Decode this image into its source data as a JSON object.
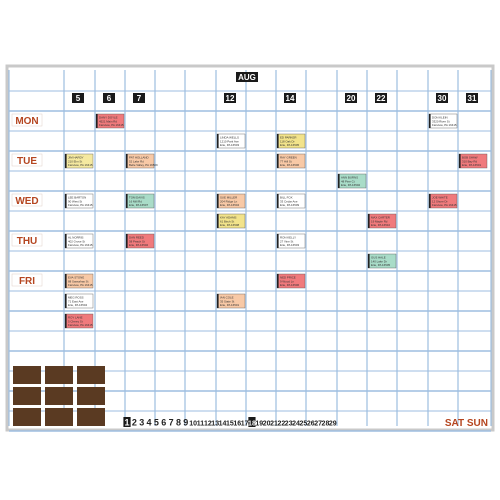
{
  "board": {
    "month": "AUG",
    "date_headers": [
      {
        "col": 2,
        "text": "5"
      },
      {
        "col": 3,
        "text": "6"
      },
      {
        "col": 4,
        "text": "7"
      },
      {
        "col": 7,
        "text": "12"
      },
      {
        "col": 9,
        "text": "14"
      },
      {
        "col": 11,
        "text": "20"
      },
      {
        "col": 12,
        "text": "22"
      },
      {
        "col": 14,
        "text": "30"
      },
      {
        "col": 15,
        "text": "31"
      }
    ],
    "day_labels": [
      {
        "row": 1,
        "text": "MON"
      },
      {
        "row": 3,
        "text": "TUE"
      },
      {
        "row": 5,
        "text": "WED"
      },
      {
        "row": 7,
        "text": "THU"
      },
      {
        "row": 9,
        "text": "FRI"
      }
    ],
    "cards": [
      {
        "col": 3,
        "row": 1,
        "color": "#f07a7c",
        "lines": [
          "DANY DOYLE",
          "4521 Main Rd",
          "Fairview, PA 16415"
        ]
      },
      {
        "col": 14,
        "row": 1,
        "color": "#ffffff",
        "lines": [
          "DON KLEIN",
          "3320 River St",
          "Fairview, PA 16415"
        ]
      },
      {
        "col": 7,
        "row": 2,
        "color": "#ffffff",
        "lines": [
          "LINDA WELLS",
          "1210 Park Ave",
          "Erie, PA 16503"
        ]
      },
      {
        "col": 9,
        "row": 2,
        "color": "#f2e38b",
        "lines": [
          "ED PARKER",
          "118 Oak Dr",
          "Erie, PA 16505"
        ]
      },
      {
        "col": 2,
        "row": 3,
        "color": "#f5e9a0",
        "lines": [
          "JIM HARDY",
          "210 Elm St",
          "Fairview, PA 16415"
        ]
      },
      {
        "col": 4,
        "row": 3,
        "color": "#f8c9a6",
        "lines": [
          "PAT HOLLAND",
          "52 Lake Rd",
          "Belle Valley, PA 16509"
        ]
      },
      {
        "col": 9,
        "row": 3,
        "color": "#f8c9a6",
        "lines": [
          "RAY GREEN",
          "77 Hill St",
          "Erie, PA 16506"
        ]
      },
      {
        "col": 15,
        "row": 3,
        "color": "#f07a7c",
        "lines": [
          "BOB SHAW",
          "310 Bay Rd",
          "Erie, PA 16501"
        ]
      },
      {
        "col": 11,
        "row": 4,
        "color": "#a9dcc8",
        "lines": [
          "ANN BURNS",
          "48 Pine Ct",
          "Erie, PA 16502"
        ]
      },
      {
        "col": 2,
        "row": 5,
        "color": "#ffffff",
        "lines": [
          "LEE BARTON",
          "90 West St",
          "Fairview, PA 16415"
        ]
      },
      {
        "col": 4,
        "row": 5,
        "color": "#a9dcc8",
        "lines": [
          "TOM DAVIS",
          "16 Mill Rd",
          "Erie, PA 16507"
        ]
      },
      {
        "col": 7,
        "row": 5,
        "color": "#f8c9a6",
        "lines": [
          "SUE MILLER",
          "204 Ridge Ln",
          "Erie, PA 16504"
        ]
      },
      {
        "col": 9,
        "row": 5,
        "color": "#ffffff",
        "lines": [
          "BILL FOX",
          "33 Cedar Ave",
          "Erie, PA 16509"
        ]
      },
      {
        "col": 14,
        "row": 5,
        "color": "#f07a7c",
        "lines": [
          "JOE WHITE",
          "12 Shore Dr",
          "Fairview, PA 16415"
        ]
      },
      {
        "col": 7,
        "row": 6,
        "color": "#f2e38b",
        "lines": [
          "KAY ADAMS",
          "61 Birch St",
          "Erie, PA 16508"
        ]
      },
      {
        "col": 12,
        "row": 6,
        "color": "#f07a7c",
        "lines": [
          "MAX CARTER",
          "19 Maple Rd",
          "Erie, PA 16510"
        ]
      },
      {
        "col": 2,
        "row": 7,
        "color": "#ffffff",
        "lines": [
          "AL NORRIS",
          "402 Grove St",
          "Fairview, PA 16415"
        ]
      },
      {
        "col": 4,
        "row": 7,
        "color": "#f07a7c",
        "lines": [
          "DAN REED",
          "58 Peach St",
          "Erie, PA 16502"
        ]
      },
      {
        "col": 9,
        "row": 7,
        "color": "#ffffff",
        "lines": [
          "RON KELLY",
          "27 Vine St",
          "Erie, PA 16503"
        ]
      },
      {
        "col": 12,
        "row": 8,
        "color": "#a9dcc8",
        "lines": [
          "GUS HALE",
          "140 Lake Dr",
          "Erie, PA 16505"
        ]
      },
      {
        "col": 2,
        "row": 9,
        "color": "#f8c9a6",
        "lines": [
          "EVA STONE",
          "88 Sassafras St",
          "Fairview, PA 16415"
        ]
      },
      {
        "col": 9,
        "row": 9,
        "color": "#f07a7c",
        "lines": [
          "NED PRICE",
          "9 Wood Ln",
          "Erie, PA 16506"
        ]
      },
      {
        "col": 2,
        "row": 10,
        "color": "#ffffff",
        "lines": [
          "MEG ROSS",
          "71 East Ave",
          "Erie, PA 16504"
        ]
      },
      {
        "col": 7,
        "row": 10,
        "color": "#f8c9a6",
        "lines": [
          "IAN COLE",
          "35 State St",
          "Erie, PA 16501"
        ]
      },
      {
        "col": 2,
        "row": 11,
        "color": "#f07a7c",
        "lines": [
          "ROY LANE",
          "5 Cherry St",
          "Fairview, PA 16415"
        ]
      }
    ],
    "number_strip": [
      "1",
      "2",
      "3",
      "4",
      "5",
      "6",
      "7",
      "8",
      "9",
      "10",
      "11",
      "12",
      "13",
      "14",
      "15",
      "16",
      "17",
      "18",
      "19",
      "20",
      "21",
      "22",
      "23",
      "24",
      "25",
      "26",
      "27",
      "28",
      "29"
    ],
    "weekend_label": "SAT SUN",
    "colors": {
      "frame": "#c9c9c9",
      "grid": "#9dbde0",
      "day_label": "#b5451f",
      "date_box": "#1a1a1a",
      "magnet": "#5a3a22"
    }
  }
}
